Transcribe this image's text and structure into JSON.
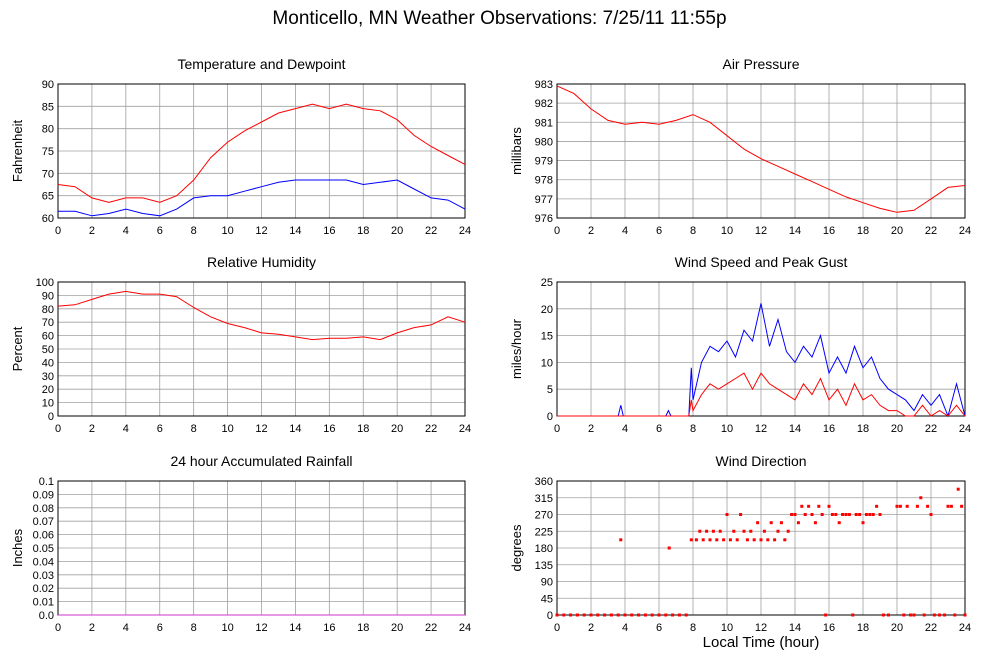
{
  "page": {
    "title": "Monticello, MN Weather Observations: 7/25/11 11:55p",
    "xlabel": "Local Time (hour)"
  },
  "colors": {
    "red": "#ff0000",
    "blue": "#0000ff",
    "grid": "#a0a0a0",
    "magenta": "#cc33cc"
  },
  "chart_data": [
    {
      "id": "temp",
      "type": "line",
      "title": "Temperature and Dewpoint",
      "ylabel": "Fahrenheit",
      "xlim": [
        0,
        24
      ],
      "ylim": [
        60,
        90
      ],
      "xticks": [
        "0",
        "2",
        "4",
        "6",
        "8",
        "10",
        "12",
        "14",
        "16",
        "18",
        "20",
        "22",
        "24"
      ],
      "yticks": [
        "60",
        "65",
        "70",
        "75",
        "80",
        "85",
        "90"
      ],
      "grid": true,
      "x": [
        0,
        1,
        2,
        3,
        4,
        5,
        6,
        7,
        8,
        9,
        10,
        11,
        12,
        13,
        14,
        15,
        16,
        17,
        18,
        19,
        20,
        21,
        22,
        23,
        24
      ],
      "series": [
        {
          "color": "red",
          "values": [
            67.5,
            67,
            64.5,
            63.5,
            64.5,
            64.5,
            63.5,
            65,
            68.5,
            73.5,
            77,
            79.5,
            81.5,
            83.5,
            84.5,
            85.5,
            84.5,
            85.5,
            84.5,
            84,
            82,
            78.5,
            76,
            74,
            72
          ]
        },
        {
          "color": "blue",
          "values": [
            61.5,
            61.5,
            60.5,
            61,
            62,
            61,
            60.5,
            62,
            64.5,
            65,
            65,
            66,
            67,
            68,
            68.5,
            68.5,
            68.5,
            68.5,
            67.5,
            68,
            68.5,
            66.5,
            64.5,
            64,
            62
          ]
        }
      ]
    },
    {
      "id": "pressure",
      "type": "line",
      "title": "Air Pressure",
      "ylabel": "millibars",
      "xlim": [
        0,
        24
      ],
      "ylim": [
        976,
        983
      ],
      "xticks": [
        "0",
        "2",
        "4",
        "6",
        "8",
        "10",
        "12",
        "14",
        "16",
        "18",
        "20",
        "22",
        "24"
      ],
      "yticks": [
        "976",
        "977",
        "978",
        "979",
        "980",
        "981",
        "982",
        "983"
      ],
      "grid": true,
      "x": [
        0,
        1,
        2,
        3,
        4,
        5,
        6,
        7,
        8,
        9,
        10,
        11,
        12,
        13,
        14,
        15,
        16,
        17,
        18,
        19,
        20,
        21,
        22,
        23,
        24
      ],
      "series": [
        {
          "color": "red",
          "values": [
            982.9,
            982.5,
            981.7,
            981.1,
            980.9,
            981,
            980.9,
            981.1,
            981.4,
            981,
            980.3,
            979.6,
            979.1,
            978.7,
            978.3,
            977.9,
            977.5,
            977.1,
            976.8,
            976.5,
            976.3,
            976.4,
            977,
            977.6,
            977.7
          ]
        }
      ]
    },
    {
      "id": "humidity",
      "type": "line",
      "title": "Relative Humidity",
      "ylabel": "Percent",
      "xlim": [
        0,
        24
      ],
      "ylim": [
        0,
        100
      ],
      "xticks": [
        "0",
        "2",
        "4",
        "6",
        "8",
        "10",
        "12",
        "14",
        "16",
        "18",
        "20",
        "22",
        "24"
      ],
      "yticks": [
        "0",
        "10",
        "20",
        "30",
        "40",
        "50",
        "60",
        "70",
        "80",
        "90",
        "100"
      ],
      "grid": true,
      "x": [
        0,
        1,
        2,
        3,
        4,
        5,
        6,
        7,
        8,
        9,
        10,
        11,
        12,
        13,
        14,
        15,
        16,
        17,
        18,
        19,
        20,
        21,
        22,
        23,
        24
      ],
      "series": [
        {
          "color": "red",
          "values": [
            82,
            83,
            87,
            91,
            93,
            91,
            91,
            89,
            81,
            74,
            69,
            66,
            62,
            61,
            59,
            57,
            58,
            58,
            59,
            57,
            62,
            66,
            68,
            74,
            70
          ]
        }
      ]
    },
    {
      "id": "wind",
      "type": "line",
      "title": "Wind Speed and Peak Gust",
      "ylabel": "miles/hour",
      "xlim": [
        0,
        24
      ],
      "ylim": [
        0,
        25
      ],
      "xticks": [
        "0",
        "2",
        "4",
        "6",
        "8",
        "10",
        "12",
        "14",
        "16",
        "18",
        "20",
        "22",
        "24"
      ],
      "yticks": [
        "0",
        "5",
        "10",
        "15",
        "20",
        "25"
      ],
      "grid": true,
      "x": [
        0,
        1,
        2,
        3,
        3.6,
        3.75,
        3.9,
        4,
        5,
        6,
        6.4,
        6.55,
        6.7,
        7,
        7.75,
        7.9,
        8,
        8.5,
        9,
        9.5,
        10,
        10.5,
        11,
        11.5,
        12,
        12.5,
        13,
        13.5,
        14,
        14.5,
        15,
        15.5,
        16,
        16.5,
        17,
        17.5,
        18,
        18.5,
        19,
        19.5,
        20,
        20.5,
        21,
        21.5,
        22,
        22.5,
        23,
        23.5,
        24
      ],
      "series": [
        {
          "color": "blue",
          "values": [
            0,
            0,
            0,
            0,
            0,
            2,
            0,
            0,
            0,
            0,
            0,
            1,
            0,
            0,
            0,
            9,
            3,
            10,
            13,
            12,
            14,
            11,
            16,
            14,
            21,
            13,
            18,
            12,
            10,
            13,
            11,
            15,
            8,
            11,
            8,
            13,
            9,
            11,
            7,
            5,
            4,
            3,
            1,
            4,
            2,
            4,
            0,
            6,
            0
          ]
        },
        {
          "color": "red",
          "values": [
            0,
            0,
            0,
            0,
            0,
            0,
            0,
            0,
            0,
            0,
            0,
            0,
            0,
            0,
            0,
            3,
            1,
            4,
            6,
            5,
            6,
            7,
            8,
            5,
            8,
            6,
            5,
            4,
            3,
            6,
            4,
            7,
            3,
            5,
            2,
            6,
            3,
            4,
            2,
            1,
            1,
            0,
            0,
            2,
            0,
            1,
            0,
            2,
            0
          ]
        }
      ]
    },
    {
      "id": "rain",
      "type": "line",
      "title": "24 hour Accumulated Rainfall",
      "ylabel": "Inches",
      "xlim": [
        0,
        24
      ],
      "ylim": [
        0,
        0.1
      ],
      "xticks": [
        "0",
        "2",
        "4",
        "6",
        "8",
        "10",
        "12",
        "14",
        "16",
        "18",
        "20",
        "22",
        "24"
      ],
      "yticks": [
        "0.0",
        "0.01",
        "0.02",
        "0.03",
        "0.04",
        "0.05",
        "0.06",
        "0.07",
        "0.08",
        "0.09",
        "0.1"
      ],
      "grid": true,
      "x": [
        0,
        24
      ],
      "series": [
        {
          "color": "magenta",
          "values": [
            0,
            0
          ]
        }
      ]
    },
    {
      "id": "direction",
      "type": "scatter",
      "title": "Wind Direction",
      "ylabel": "degrees",
      "xlim": [
        0,
        24
      ],
      "ylim": [
        0,
        360
      ],
      "xticks": [
        "0",
        "2",
        "4",
        "6",
        "8",
        "10",
        "12",
        "14",
        "16",
        "18",
        "20",
        "22",
        "24"
      ],
      "yticks": [
        "0",
        "45",
        "90",
        "135",
        "180",
        "225",
        "270",
        "315",
        "360"
      ],
      "grid": true,
      "series": [
        {
          "color": "red",
          "points": [
            [
              0.0,
              0
            ],
            [
              0.4,
              0
            ],
            [
              0.8,
              0
            ],
            [
              1.2,
              0
            ],
            [
              1.6,
              0
            ],
            [
              2.0,
              0
            ],
            [
              2.4,
              0
            ],
            [
              2.8,
              0
            ],
            [
              3.2,
              0
            ],
            [
              3.6,
              0
            ],
            [
              3.75,
              202
            ],
            [
              4.0,
              0
            ],
            [
              4.4,
              0
            ],
            [
              4.8,
              0
            ],
            [
              5.2,
              0
            ],
            [
              5.6,
              0
            ],
            [
              6.0,
              0
            ],
            [
              6.4,
              0
            ],
            [
              6.6,
              180
            ],
            [
              6.8,
              0
            ],
            [
              7.2,
              0
            ],
            [
              7.6,
              0
            ],
            [
              7.9,
              202
            ],
            [
              8.2,
              202
            ],
            [
              8.4,
              225
            ],
            [
              8.6,
              202
            ],
            [
              8.8,
              225
            ],
            [
              9.0,
              202
            ],
            [
              9.2,
              225
            ],
            [
              9.4,
              202
            ],
            [
              9.6,
              225
            ],
            [
              9.8,
              202
            ],
            [
              10.0,
              270
            ],
            [
              10.2,
              202
            ],
            [
              10.4,
              225
            ],
            [
              10.6,
              202
            ],
            [
              10.8,
              270
            ],
            [
              11.0,
              225
            ],
            [
              11.2,
              202
            ],
            [
              11.4,
              225
            ],
            [
              11.6,
              202
            ],
            [
              11.8,
              248
            ],
            [
              12.0,
              202
            ],
            [
              12.2,
              225
            ],
            [
              12.4,
              202
            ],
            [
              12.6,
              248
            ],
            [
              12.8,
              202
            ],
            [
              13.0,
              225
            ],
            [
              13.2,
              248
            ],
            [
              13.4,
              202
            ],
            [
              13.6,
              225
            ],
            [
              13.8,
              270
            ],
            [
              14.0,
              270
            ],
            [
              14.2,
              248
            ],
            [
              14.4,
              292
            ],
            [
              14.6,
              270
            ],
            [
              14.8,
              292
            ],
            [
              15.0,
              270
            ],
            [
              15.2,
              248
            ],
            [
              15.4,
              292
            ],
            [
              15.6,
              270
            ],
            [
              15.8,
              0
            ],
            [
              16.0,
              292
            ],
            [
              16.2,
              270
            ],
            [
              16.4,
              270
            ],
            [
              16.6,
              248
            ],
            [
              16.8,
              270
            ],
            [
              17.0,
              270
            ],
            [
              17.2,
              270
            ],
            [
              17.4,
              0
            ],
            [
              17.6,
              270
            ],
            [
              17.8,
              270
            ],
            [
              18.0,
              248
            ],
            [
              18.2,
              270
            ],
            [
              18.4,
              270
            ],
            [
              18.6,
              270
            ],
            [
              18.8,
              292
            ],
            [
              19.0,
              270
            ],
            [
              19.2,
              0
            ],
            [
              19.5,
              0
            ],
            [
              20.0,
              292
            ],
            [
              20.2,
              292
            ],
            [
              20.4,
              0
            ],
            [
              20.6,
              292
            ],
            [
              20.8,
              0
            ],
            [
              21.0,
              0
            ],
            [
              21.2,
              292
            ],
            [
              21.4,
              315
            ],
            [
              21.6,
              0
            ],
            [
              21.8,
              292
            ],
            [
              22.0,
              270
            ],
            [
              22.2,
              0
            ],
            [
              22.5,
              0
            ],
            [
              22.8,
              0
            ],
            [
              23.0,
              292
            ],
            [
              23.2,
              292
            ],
            [
              23.4,
              0
            ],
            [
              23.6,
              338
            ],
            [
              23.8,
              292
            ],
            [
              24.0,
              0
            ]
          ]
        }
      ]
    }
  ]
}
